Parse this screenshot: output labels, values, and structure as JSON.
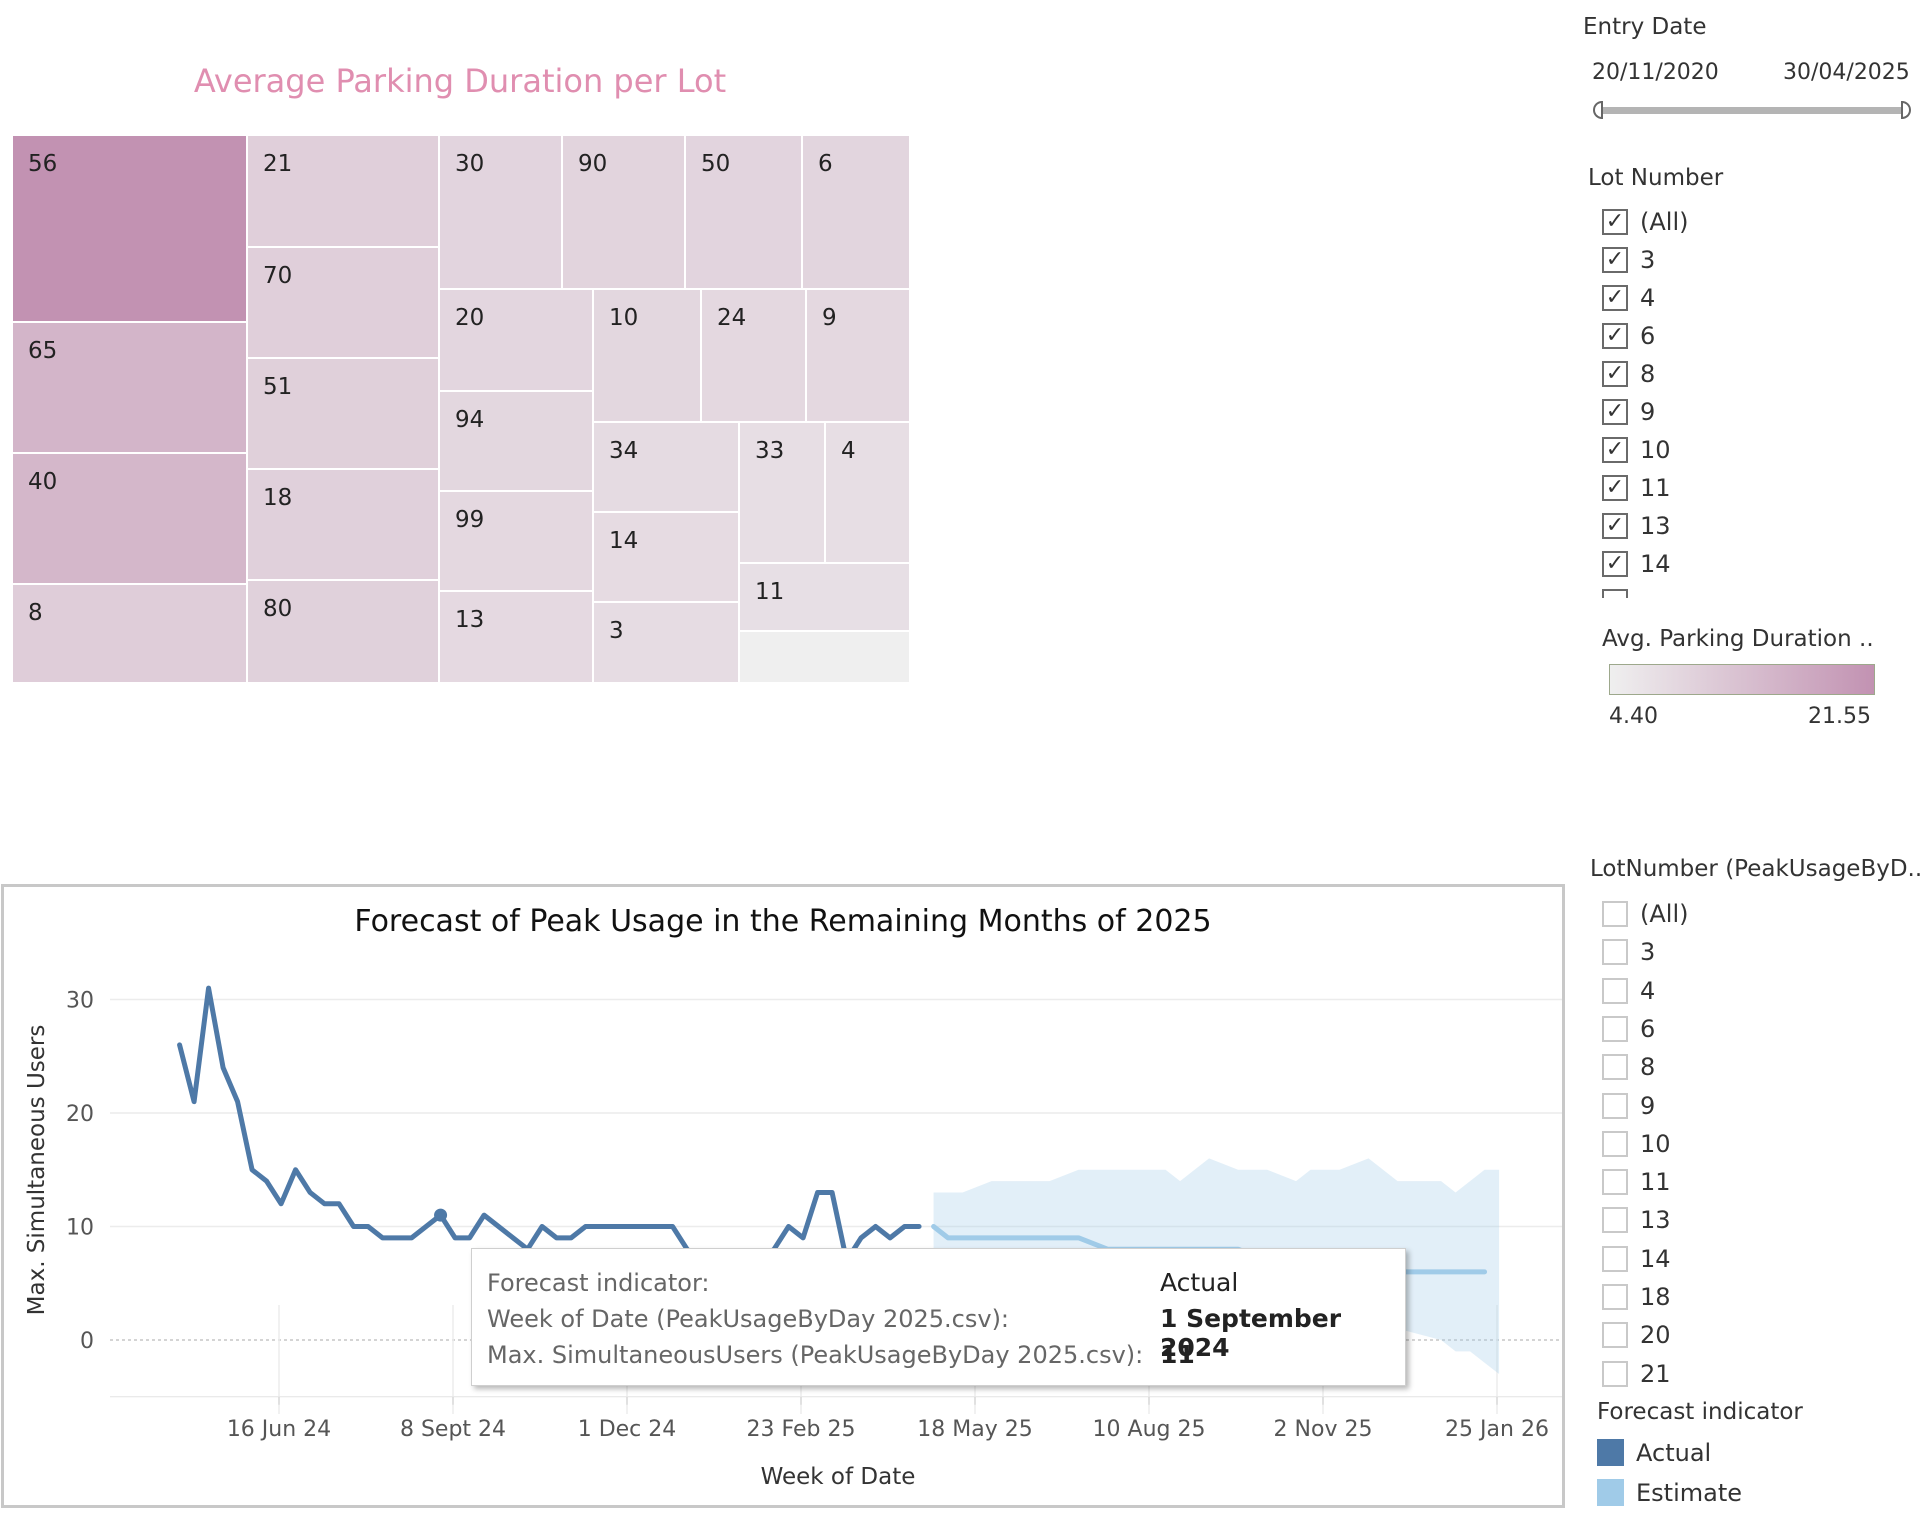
{
  "treemap": {
    "title": "Average Parking Duration per Lot",
    "tiles": [
      {
        "label": "56",
        "value": 21.55
      },
      {
        "label": "65",
        "value": 15.1
      },
      {
        "label": "40",
        "value": 14.8
      },
      {
        "label": "8",
        "value": 10.6
      },
      {
        "label": "21",
        "value": 10.3
      },
      {
        "label": "70",
        "value": 10.3
      },
      {
        "label": "51",
        "value": 10.2
      },
      {
        "label": "18",
        "value": 10.1
      },
      {
        "label": "80",
        "value": 10.0
      },
      {
        "label": "30",
        "value": 9.3
      },
      {
        "label": "90",
        "value": 9.4
      },
      {
        "label": "50",
        "value": 9.3
      },
      {
        "label": "6",
        "value": 9.2
      },
      {
        "label": "20",
        "value": 9.0
      },
      {
        "label": "10",
        "value": 8.8
      },
      {
        "label": "24",
        "value": 8.6
      },
      {
        "label": "9",
        "value": 8.6
      },
      {
        "label": "94",
        "value": 8.9
      },
      {
        "label": "34",
        "value": 8.1
      },
      {
        "label": "33",
        "value": 7.6
      },
      {
        "label": "4",
        "value": 7.5
      },
      {
        "label": "99",
        "value": 8.7
      },
      {
        "label": "14",
        "value": 8.0
      },
      {
        "label": "11",
        "value": 7.3
      },
      {
        "label": "13",
        "value": 8.4
      },
      {
        "label": "3",
        "value": 7.9
      },
      {
        "label": "",
        "value": 4.4
      }
    ]
  },
  "filters": {
    "entry_date": {
      "title": "Entry Date",
      "start": "20/11/2020",
      "end": "30/04/2025"
    },
    "lot_number": {
      "title": "Lot Number",
      "items": [
        "(All)",
        "3",
        "4",
        "6",
        "8",
        "9",
        "10",
        "11",
        "13",
        "14"
      ]
    },
    "color_legend": {
      "title": "Avg. Parking Duration ..",
      "min": "4.40",
      "max": "21.55",
      "min_color": "#efefef",
      "max_color": "#c292b2"
    },
    "lot_number_peak": {
      "title": "LotNumber (PeakUsageByD..",
      "items": [
        "(All)",
        "3",
        "4",
        "6",
        "8",
        "9",
        "10",
        "11",
        "13",
        "14",
        "18",
        "20",
        "21"
      ]
    },
    "forecast_legend": {
      "title": "Forecast indicator",
      "items": [
        {
          "label": "Actual",
          "color": "#4e79a7"
        },
        {
          "label": "Estimate",
          "color": "#a0cbe8"
        }
      ]
    }
  },
  "chart_data": {
    "type": "line",
    "title": "Forecast of Peak Usage in the Remaining Months of 2025",
    "xlabel": "Week of Date",
    "ylabel": "Max. Simultaneous Users",
    "x_tick_labels": [
      "16 Jun 24",
      "8 Sept 24",
      "1 Dec 24",
      "23 Feb 25",
      "18 May 25",
      "10 Aug 25",
      "2 Nov 25",
      "25 Jan 26"
    ],
    "y_ticks": [
      0,
      10,
      20,
      30
    ],
    "ylim": [
      -5,
      33
    ],
    "grid": true,
    "legend": "right",
    "series": [
      {
        "name": "Actual",
        "color": "#4e79a7",
        "points": [
          [
            "2024-04-29",
            26
          ],
          [
            "2024-05-06",
            21
          ],
          [
            "2024-05-13",
            31
          ],
          [
            "2024-05-20",
            24
          ],
          [
            "2024-05-27",
            21
          ],
          [
            "2024-06-03",
            15
          ],
          [
            "2024-06-10",
            14
          ],
          [
            "2024-06-17",
            12
          ],
          [
            "2024-06-24",
            15
          ],
          [
            "2024-07-01",
            13
          ],
          [
            "2024-07-08",
            12
          ],
          [
            "2024-07-15",
            12
          ],
          [
            "2024-07-22",
            10
          ],
          [
            "2024-07-29",
            10
          ],
          [
            "2024-08-05",
            9
          ],
          [
            "2024-08-12",
            9
          ],
          [
            "2024-08-19",
            9
          ],
          [
            "2024-08-26",
            10
          ],
          [
            "2024-09-02",
            11
          ],
          [
            "2024-09-09",
            9
          ],
          [
            "2024-09-16",
            9
          ],
          [
            "2024-09-23",
            11
          ],
          [
            "2024-09-30",
            10
          ],
          [
            "2024-10-07",
            9
          ],
          [
            "2024-10-14",
            8
          ],
          [
            "2024-10-21",
            10
          ],
          [
            "2024-10-28",
            9
          ],
          [
            "2024-11-04",
            9
          ],
          [
            "2024-11-11",
            10
          ],
          [
            "2024-11-18",
            10
          ],
          [
            "2024-11-25",
            10
          ],
          [
            "2024-12-02",
            10
          ],
          [
            "2024-12-09",
            10
          ],
          [
            "2024-12-16",
            10
          ],
          [
            "2024-12-23",
            10
          ],
          [
            "2024-12-30",
            8
          ],
          [
            "2025-01-06",
            7
          ],
          [
            "2025-01-13",
            7
          ],
          [
            "2025-01-20",
            7
          ],
          [
            "2025-01-27",
            7
          ],
          [
            "2025-02-03",
            7
          ],
          [
            "2025-02-10",
            8
          ],
          [
            "2025-02-17",
            10
          ],
          [
            "2025-02-24",
            9
          ],
          [
            "2025-03-03",
            13
          ],
          [
            "2025-03-10",
            13
          ],
          [
            "2025-03-17",
            7
          ],
          [
            "2025-03-24",
            9
          ],
          [
            "2025-03-31",
            10
          ],
          [
            "2025-04-07",
            9
          ],
          [
            "2025-04-14",
            10
          ],
          [
            "2025-04-21",
            10
          ]
        ]
      },
      {
        "name": "Estimate",
        "color": "#a0cbe8",
        "points": [
          [
            "2025-04-28",
            10
          ],
          [
            "2025-05-05",
            9
          ],
          [
            "2025-06-23",
            9
          ],
          [
            "2025-07-07",
            9
          ],
          [
            "2025-07-21",
            8
          ],
          [
            "2025-09-22",
            8
          ],
          [
            "2025-10-06",
            7
          ],
          [
            "2025-11-03",
            7
          ],
          [
            "2025-11-24",
            6
          ],
          [
            "2026-01-19",
            6
          ]
        ],
        "band": [
          [
            "2025-04-28",
            13,
            7
          ],
          [
            "2025-05-12",
            13,
            7
          ],
          [
            "2025-05-26",
            14,
            6
          ],
          [
            "2025-06-23",
            14,
            6
          ],
          [
            "2025-07-07",
            15,
            5
          ],
          [
            "2025-08-18",
            15,
            5
          ],
          [
            "2025-08-25",
            14,
            4
          ],
          [
            "2025-09-08",
            16,
            4
          ],
          [
            "2025-09-22",
            15,
            3
          ],
          [
            "2025-10-06",
            15,
            3
          ],
          [
            "2025-10-20",
            14,
            2
          ],
          [
            "2025-10-27",
            15,
            2
          ],
          [
            "2025-11-10",
            15,
            2
          ],
          [
            "2025-11-24",
            16,
            1
          ],
          [
            "2025-12-08",
            14,
            1
          ],
          [
            "2025-12-29",
            14,
            0
          ],
          [
            "2026-01-05",
            13,
            -1
          ],
          [
            "2026-01-12",
            14,
            -1
          ],
          [
            "2026-01-19",
            15,
            -2
          ],
          [
            "2026-01-26",
            15,
            -3
          ]
        ]
      }
    ],
    "tooltip": {
      "rows": [
        {
          "label": "Forecast indicator:",
          "value": "Actual"
        },
        {
          "label": "Week of Date (PeakUsageByDay 2025.csv):",
          "value": "1 September 2024"
        },
        {
          "label": "Max. SimultaneousUsers (PeakUsageByDay 2025.csv):",
          "value": "11"
        }
      ]
    }
  }
}
